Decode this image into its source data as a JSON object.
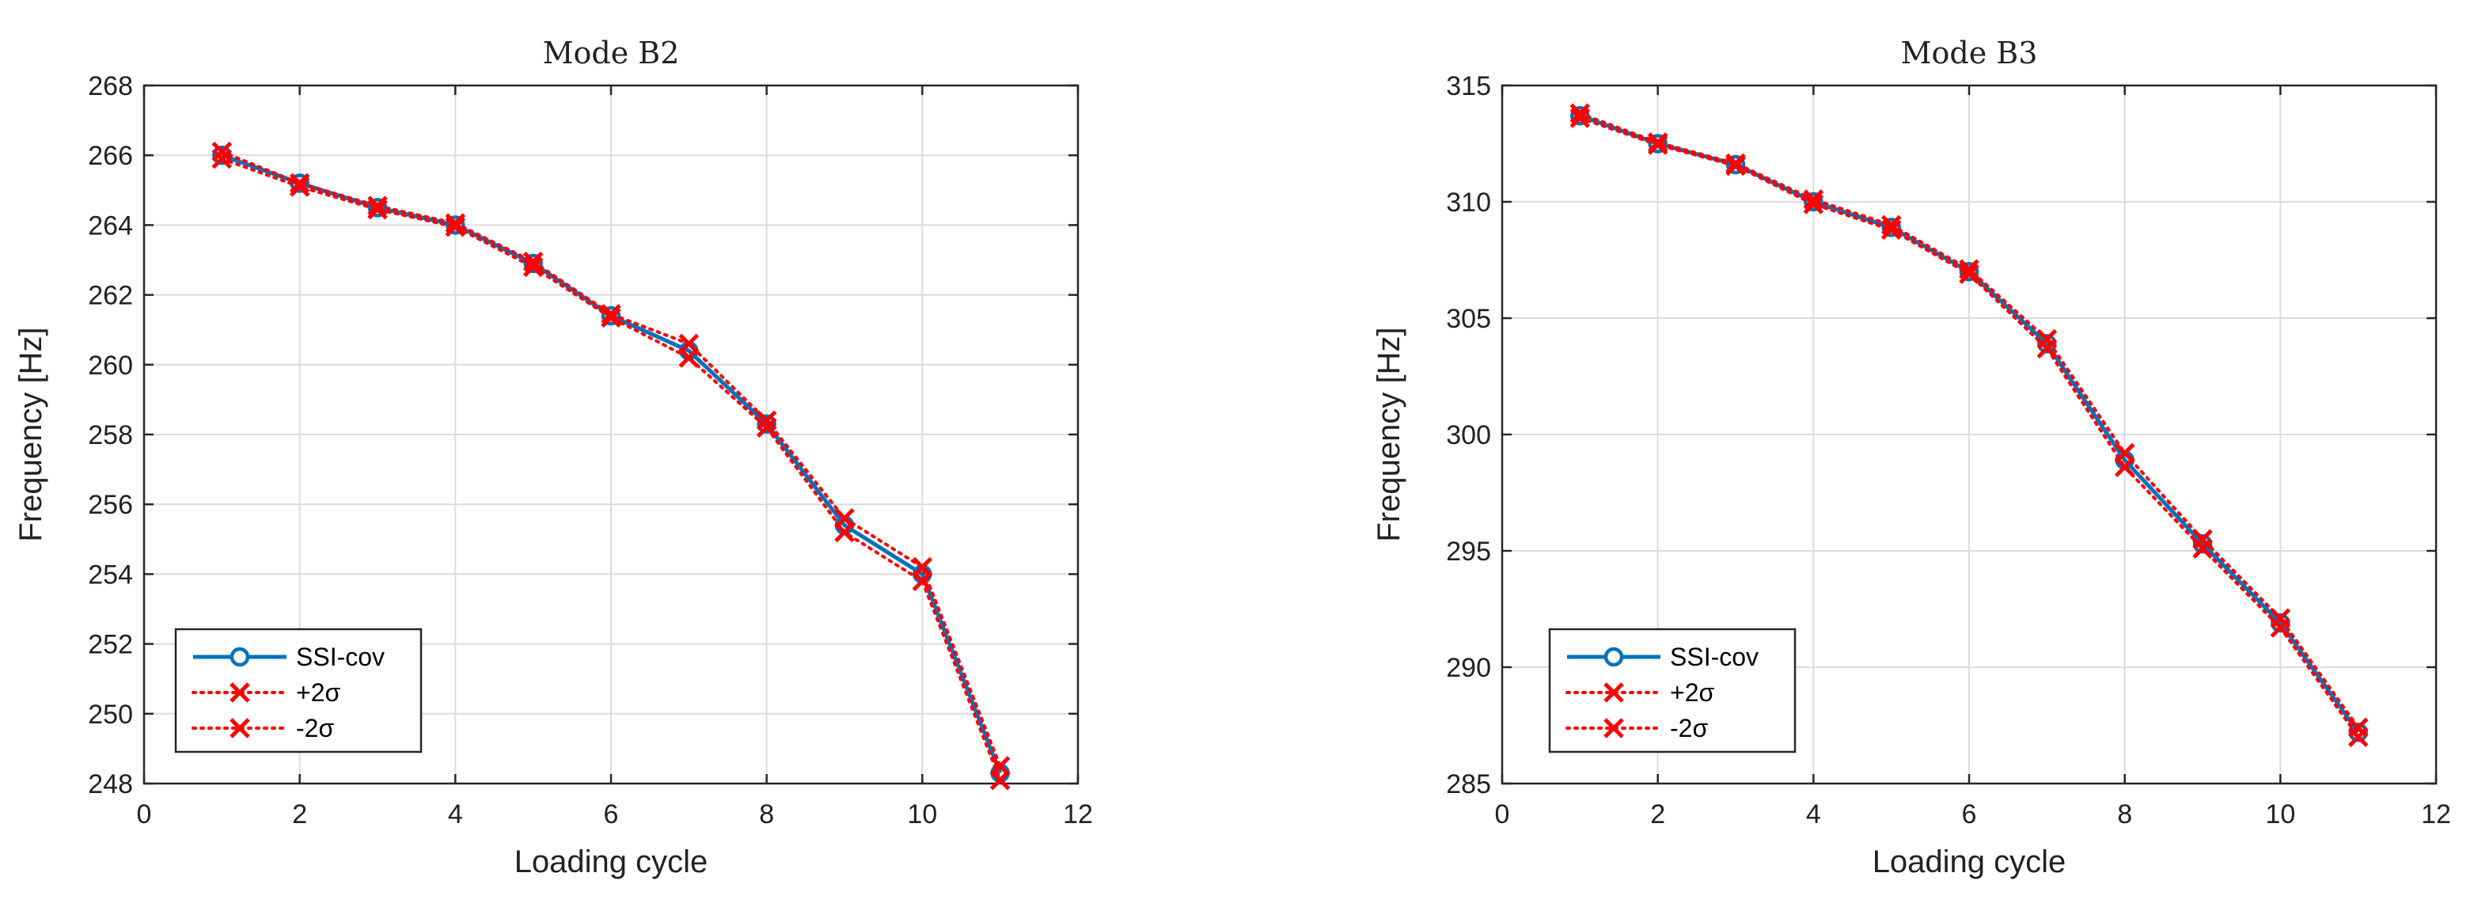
{
  "colors": {
    "ssi": "#0072BD",
    "sigma": "#FF0000",
    "grid": "#DCDCDC",
    "axis": "#262626"
  },
  "chart_data": [
    {
      "type": "line",
      "title": "Mode B2",
      "xlabel": "Loading cycle",
      "ylabel": "Frequency [Hz]",
      "xlim": [
        0,
        12
      ],
      "ylim": [
        248,
        268
      ],
      "xticks": [
        0,
        2,
        4,
        6,
        8,
        10,
        12
      ],
      "yticks": [
        248,
        250,
        252,
        254,
        256,
        258,
        260,
        262,
        264,
        266,
        268
      ],
      "grid": true,
      "legend_position": "bottom-left",
      "x": [
        1,
        2,
        3,
        4,
        5,
        6,
        7,
        8,
        9,
        10,
        11
      ],
      "series": [
        {
          "name": "SSI-cov",
          "style": "solid-circle",
          "values": [
            266.0,
            265.2,
            264.5,
            264.0,
            262.9,
            261.4,
            260.4,
            258.3,
            255.4,
            254.0,
            248.3
          ]
        },
        {
          "name": "+2σ",
          "style": "dotted-x",
          "values": [
            266.1,
            265.2,
            264.55,
            264.05,
            262.95,
            261.45,
            260.6,
            258.4,
            255.6,
            254.2,
            248.5
          ]
        },
        {
          "name": "-2σ",
          "style": "dotted-x",
          "values": [
            265.9,
            265.1,
            264.45,
            263.95,
            262.8,
            261.35,
            260.2,
            258.2,
            255.2,
            253.8,
            248.1
          ]
        }
      ]
    },
    {
      "type": "line",
      "title": "Mode B3",
      "xlabel": "Loading cycle",
      "ylabel": "Frequency [Hz]",
      "xlim": [
        0,
        12
      ],
      "ylim": [
        285,
        315
      ],
      "xticks": [
        0,
        2,
        4,
        6,
        8,
        10,
        12
      ],
      "yticks": [
        285,
        290,
        295,
        300,
        305,
        310,
        315
      ],
      "grid": true,
      "legend_position": "bottom-left",
      "x": [
        1,
        2,
        3,
        4,
        5,
        6,
        7,
        8,
        9,
        10,
        11
      ],
      "series": [
        {
          "name": "SSI-cov",
          "style": "solid-circle",
          "values": [
            313.7,
            312.5,
            311.6,
            310.0,
            308.9,
            307.0,
            303.9,
            298.9,
            295.3,
            291.9,
            287.2
          ]
        },
        {
          "name": "+2σ",
          "style": "dotted-x",
          "values": [
            313.8,
            312.55,
            311.65,
            310.1,
            309.0,
            307.1,
            304.1,
            299.2,
            295.5,
            292.1,
            287.4
          ]
        },
        {
          "name": "-2σ",
          "style": "dotted-x",
          "values": [
            313.6,
            312.45,
            311.55,
            309.9,
            308.8,
            306.9,
            303.7,
            298.6,
            295.1,
            291.7,
            287.0
          ]
        }
      ]
    }
  ]
}
